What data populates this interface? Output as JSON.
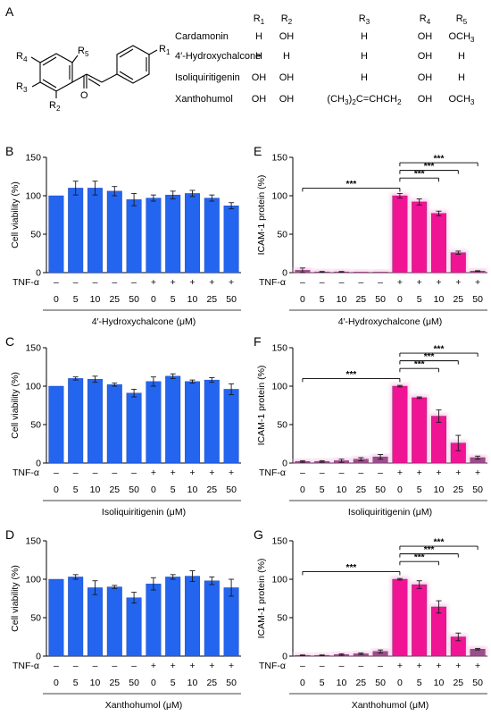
{
  "panel_labels": {
    "A": "A",
    "B": "B",
    "C": "C",
    "D": "D",
    "E": "E",
    "F": "F",
    "G": "G"
  },
  "structure": {
    "labels": [
      "R4",
      "R5",
      "R1",
      "R3",
      "R2",
      "O"
    ],
    "table": {
      "headers": [
        "R1",
        "R2",
        "R3",
        "R4",
        "R5"
      ],
      "rows": [
        {
          "name": "Cardamonin",
          "cells": [
            "H",
            "OH",
            "H",
            "OH",
            "OCH3"
          ]
        },
        {
          "name": "4′-Hydroxychalcone",
          "cells": [
            "H",
            "H",
            "H",
            "OH",
            "H"
          ]
        },
        {
          "name": "Isoliquiritigenin",
          "cells": [
            "OH",
            "OH",
            "H",
            "OH",
            "H"
          ]
        },
        {
          "name": "Xanthohumol",
          "cells": [
            "OH",
            "OH",
            "(CH3)2C=CHCH2",
            "OH",
            "OCH3"
          ]
        }
      ]
    }
  },
  "colors": {
    "viability_bar": "#2465F0",
    "icam_bar_high": "#F01494",
    "icam_bar_low": "#9C4D8C",
    "error_bar": "#1A1A1A",
    "pink_glow": "#F7C6E6"
  },
  "chart_data": [
    {
      "id": "B",
      "type": "bar",
      "ylabel": "Cell viability (%)",
      "ylim": [
        0,
        150
      ],
      "yticks": [
        0,
        50,
        100,
        150
      ],
      "row_label": "TNF-α",
      "tnf": [
        "–",
        "–",
        "–",
        "–",
        "–",
        "+",
        "+",
        "+",
        "+",
        "+"
      ],
      "categories": [
        "0",
        "5",
        "10",
        "25",
        "50",
        "0",
        "5",
        "10",
        "25",
        "50"
      ],
      "values": [
        100,
        110,
        110,
        106,
        95,
        97,
        101,
        103,
        97,
        87
      ],
      "errors": [
        0,
        9,
        9,
        6,
        8,
        4,
        5,
        4,
        4,
        4
      ],
      "xlabel": "4′-Hydroxychalcone (μM)",
      "significance": []
    },
    {
      "id": "C",
      "type": "bar",
      "ylabel": "Cell viability (%)",
      "ylim": [
        0,
        150
      ],
      "yticks": [
        0,
        50,
        100,
        150
      ],
      "row_label": "TNF-α",
      "tnf": [
        "–",
        "–",
        "–",
        "–",
        "–",
        "+",
        "+",
        "+",
        "+",
        "+"
      ],
      "categories": [
        "0",
        "5",
        "10",
        "25",
        "50",
        "0",
        "5",
        "10",
        "25",
        "50"
      ],
      "values": [
        100,
        110,
        109,
        102,
        91,
        106,
        113,
        106,
        108,
        96
      ],
      "errors": [
        0,
        2,
        4,
        2,
        5,
        6,
        3,
        2,
        3,
        7
      ],
      "xlabel": "Isoliquiritigenin (μM)",
      "significance": []
    },
    {
      "id": "D",
      "type": "bar",
      "ylabel": "Cell viability (%)",
      "ylim": [
        0,
        150
      ],
      "yticks": [
        0,
        50,
        100,
        150
      ],
      "row_label": "TNF-α",
      "tnf": [
        "–",
        "–",
        "–",
        "–",
        "–",
        "+",
        "+",
        "+",
        "+",
        "+"
      ],
      "categories": [
        "0",
        "5",
        "10",
        "25",
        "50",
        "0",
        "5",
        "10",
        "25",
        "50"
      ],
      "values": [
        100,
        103,
        89,
        90,
        76,
        94,
        103,
        104,
        98,
        89
      ],
      "errors": [
        0,
        3,
        9,
        2,
        7,
        8,
        3,
        7,
        5,
        11
      ],
      "xlabel": "Xanthohumol (μM)",
      "significance": []
    },
    {
      "id": "E",
      "type": "bar",
      "ylabel": "ICAM-1 protein (%)",
      "ylim": [
        0,
        150
      ],
      "yticks": [
        0,
        50,
        100,
        150
      ],
      "row_label": "TNF-α",
      "tnf": [
        "–",
        "–",
        "–",
        "–",
        "–",
        "+",
        "+",
        "+",
        "+",
        "+"
      ],
      "categories": [
        "0",
        "5",
        "10",
        "25",
        "50",
        "0",
        "5",
        "10",
        "25",
        "50"
      ],
      "values": [
        3,
        1,
        1,
        0.5,
        0.5,
        100,
        92,
        77,
        26,
        2
      ],
      "errors": [
        3,
        0.5,
        0.5,
        0.3,
        0.3,
        3,
        4,
        3,
        2,
        0.5
      ],
      "xlabel": "4′-Hydroxychalcone (μM)",
      "significance": [
        {
          "from": 0,
          "to": 5,
          "y": 110,
          "label": "***"
        },
        {
          "from": 5,
          "to": 7,
          "y": 123,
          "label": "***"
        },
        {
          "from": 5,
          "to": 8,
          "y": 133,
          "label": "***"
        },
        {
          "from": 5,
          "to": 9,
          "y": 143,
          "label": "***"
        }
      ]
    },
    {
      "id": "F",
      "type": "bar",
      "ylabel": "ICAM-1 protein (%)",
      "ylim": [
        0,
        150
      ],
      "yticks": [
        0,
        50,
        100,
        150
      ],
      "row_label": "TNF-α",
      "tnf": [
        "–",
        "–",
        "–",
        "–",
        "–",
        "+",
        "+",
        "+",
        "+",
        "+"
      ],
      "categories": [
        "0",
        "5",
        "10",
        "25",
        "50",
        "0",
        "5",
        "10",
        "25",
        "50"
      ],
      "values": [
        2,
        2,
        3,
        5,
        8,
        100,
        85,
        61,
        26,
        7
      ],
      "errors": [
        1,
        1,
        2,
        2,
        3,
        1,
        1,
        8,
        10,
        2
      ],
      "xlabel": "Isoliquiritigenin (μM)",
      "significance": [
        {
          "from": 0,
          "to": 5,
          "y": 110,
          "label": "***"
        },
        {
          "from": 5,
          "to": 7,
          "y": 123,
          "label": "***"
        },
        {
          "from": 5,
          "to": 8,
          "y": 133,
          "label": "***"
        },
        {
          "from": 5,
          "to": 9,
          "y": 143,
          "label": "***"
        }
      ]
    },
    {
      "id": "G",
      "type": "bar",
      "ylabel": "ICAM-1 protein (%)",
      "ylim": [
        0,
        150
      ],
      "yticks": [
        0,
        50,
        100,
        150
      ],
      "row_label": "TNF-α",
      "tnf": [
        "–",
        "–",
        "–",
        "–",
        "–",
        "+",
        "+",
        "+",
        "+",
        "+"
      ],
      "categories": [
        "0",
        "5",
        "10",
        "25",
        "50",
        "0",
        "5",
        "10",
        "25",
        "50"
      ],
      "values": [
        1,
        1,
        2,
        3,
        6,
        100,
        93,
        64,
        25,
        9
      ],
      "errors": [
        0.5,
        0.5,
        1,
        1,
        2,
        1,
        5,
        8,
        5,
        1
      ],
      "xlabel": "Xanthohumol (μM)",
      "significance": [
        {
          "from": 0,
          "to": 5,
          "y": 110,
          "label": "***"
        },
        {
          "from": 5,
          "to": 7,
          "y": 123,
          "label": "***"
        },
        {
          "from": 5,
          "to": 8,
          "y": 133,
          "label": "***"
        },
        {
          "from": 5,
          "to": 9,
          "y": 143,
          "label": "***"
        }
      ]
    }
  ]
}
